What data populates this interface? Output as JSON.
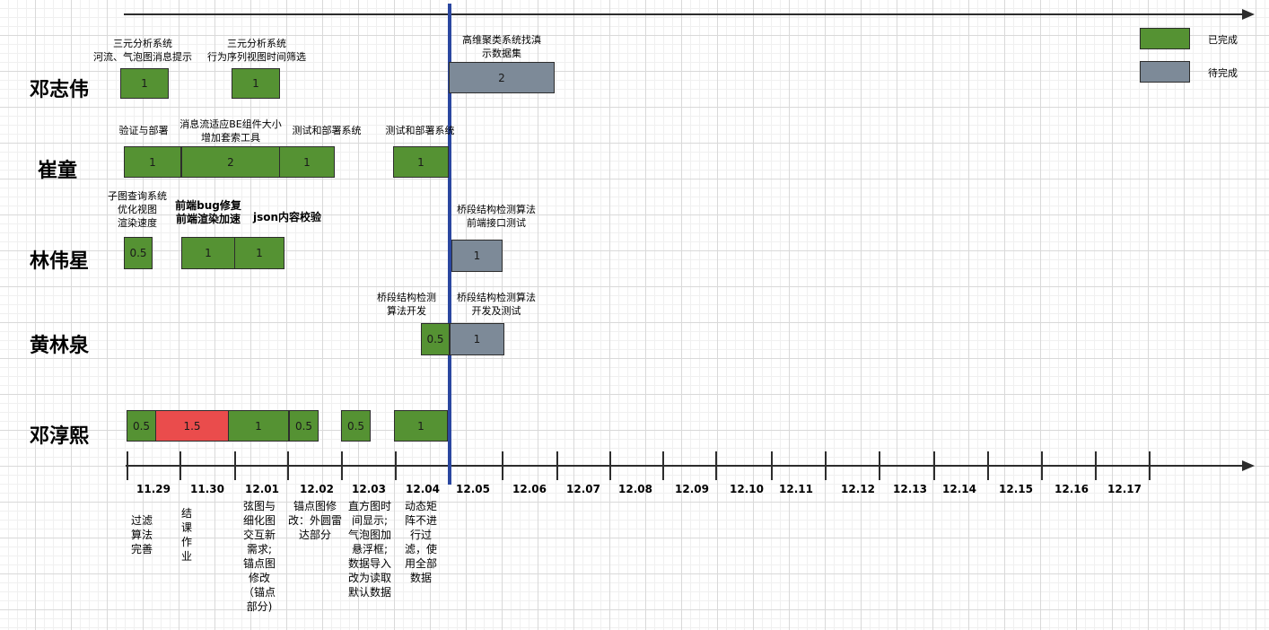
{
  "legend": {
    "done_label": "已完成",
    "todo_label": "待完成",
    "done_color": "#559233",
    "todo_color": "#7d8a98",
    "late_color": "#ea4c4c"
  },
  "people": [
    "邓志伟",
    "崔童",
    "林伟星",
    "黄林泉",
    "邓淳熙"
  ],
  "dates": [
    "11.29",
    "11.30",
    "12.01",
    "12.02",
    "12.03",
    "12.04",
    "12.05",
    "12.06",
    "12.07",
    "12.08",
    "12.09",
    "12.10",
    "12.11",
    "12.12",
    "12.13",
    "12.14",
    "12.15",
    "12.16",
    "12.17"
  ],
  "rows": {
    "dengzhiwei": {
      "tasks": [
        {
          "value": "1",
          "status": "done",
          "label": "三元分析系统\n河流、气泡图消息提示"
        },
        {
          "value": "1",
          "status": "done",
          "label": "三元分析系统\n行为序列视图时间筛选"
        },
        {
          "value": "2",
          "status": "todo",
          "label": "高维聚类系统找滇\n示数据集"
        }
      ]
    },
    "cuitong": {
      "tasks": [
        {
          "value": "1",
          "status": "done",
          "label": "验证与部署"
        },
        {
          "value": "2",
          "status": "done",
          "label": "消息流适应BE组件大小\n增加套索工具"
        },
        {
          "value": "1",
          "status": "done",
          "label": "测试和部署系统"
        },
        {
          "value": "1",
          "status": "done",
          "label": "测试和部署系统"
        }
      ]
    },
    "linweixing": {
      "tasks": [
        {
          "value": "0.5",
          "status": "done",
          "label": "子图查询系统\n优化视图\n渲染速度"
        },
        {
          "value": "1",
          "status": "done",
          "label": "前端bug修复\n前端渲染加速"
        },
        {
          "value": "1",
          "status": "done",
          "label": "json内容校验"
        },
        {
          "value": "1",
          "status": "todo",
          "label": "桥段结构检测算法\n前端接口测试"
        }
      ]
    },
    "huanglinquan": {
      "tasks": [
        {
          "value": "0.5",
          "status": "done",
          "label": "桥段结构检测\n算法开发"
        },
        {
          "value": "1",
          "status": "todo",
          "label": "桥段结构检测算法\n开发及测试"
        }
      ]
    },
    "dengchunxi": {
      "tasks": [
        {
          "value": "0.5",
          "status": "done"
        },
        {
          "value": "1.5",
          "status": "late"
        },
        {
          "value": "1",
          "status": "done"
        },
        {
          "value": "0.5",
          "status": "done"
        },
        {
          "value": "0.5",
          "status": "done"
        },
        {
          "value": "1",
          "status": "done"
        }
      ]
    }
  },
  "notes": [
    "过滤\n算法\n完善",
    "结\n课\n作\n业",
    "弦图与\n细化图\n交互新\n需求;\n锚点图\n修改\n（锚点\n部分)",
    "锚点图修\n改：外圆雷\n达部分",
    "直方图时\n间显示;\n气泡图加\n悬浮框;\n数据导入\n改为读取\n默认数据",
    "动态矩\n阵不进\n行过\n滤，使\n用全部\n数据"
  ]
}
